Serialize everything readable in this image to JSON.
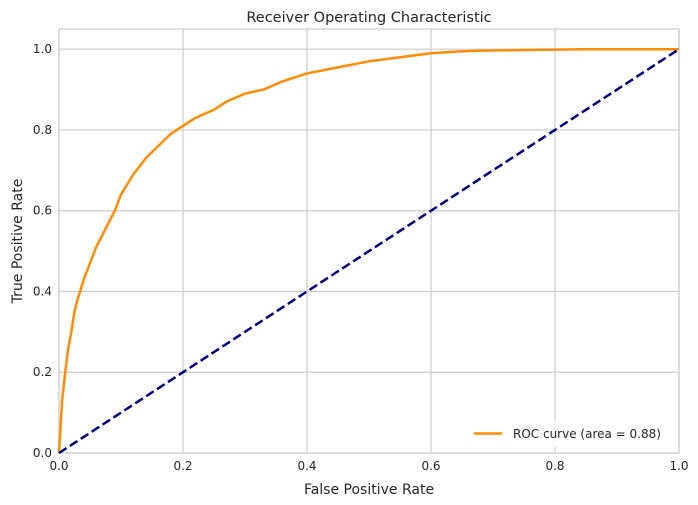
{
  "chart_data": {
    "type": "line",
    "title": "Receiver Operating Characteristic",
    "xlabel": "False Positive Rate",
    "ylabel": "True Positive Rate",
    "xlim": [
      0.0,
      1.0
    ],
    "ylim": [
      0.0,
      1.05
    ],
    "xticks": [
      0.0,
      0.2,
      0.4,
      0.6,
      0.8,
      1.0
    ],
    "yticks": [
      0.0,
      0.2,
      0.4,
      0.6,
      0.8,
      1.0
    ],
    "xtick_labels": [
      "0.0",
      "0.2",
      "0.4",
      "0.6",
      "0.8",
      "1.0"
    ],
    "ytick_labels": [
      "0.0",
      "0.2",
      "0.4",
      "0.6",
      "0.8",
      "1.0"
    ],
    "grid": true,
    "legend_position": "lower-right",
    "series": [
      {
        "name": "ROC curve (area = 0.88)",
        "color": "#ff8c00",
        "style": "solid",
        "x": [
          0.0,
          0.005,
          0.01,
          0.015,
          0.02,
          0.025,
          0.03,
          0.04,
          0.05,
          0.06,
          0.07,
          0.08,
          0.09,
          0.1,
          0.12,
          0.14,
          0.16,
          0.18,
          0.2,
          0.22,
          0.25,
          0.27,
          0.3,
          0.33,
          0.36,
          0.4,
          0.45,
          0.5,
          0.55,
          0.6,
          0.65,
          0.7,
          0.75,
          0.8,
          0.85,
          0.9,
          0.95,
          1.0
        ],
        "y": [
          0.0,
          0.13,
          0.2,
          0.26,
          0.3,
          0.35,
          0.38,
          0.43,
          0.47,
          0.51,
          0.54,
          0.57,
          0.6,
          0.64,
          0.69,
          0.73,
          0.76,
          0.79,
          0.81,
          0.83,
          0.85,
          0.87,
          0.89,
          0.9,
          0.92,
          0.94,
          0.955,
          0.97,
          0.98,
          0.99,
          0.995,
          0.997,
          0.998,
          0.999,
          1.0,
          1.0,
          1.0,
          1.0
        ]
      },
      {
        "name": "",
        "color": "#000080",
        "style": "dashed",
        "x": [
          0.0,
          1.0
        ],
        "y": [
          0.0,
          1.0
        ]
      }
    ]
  }
}
